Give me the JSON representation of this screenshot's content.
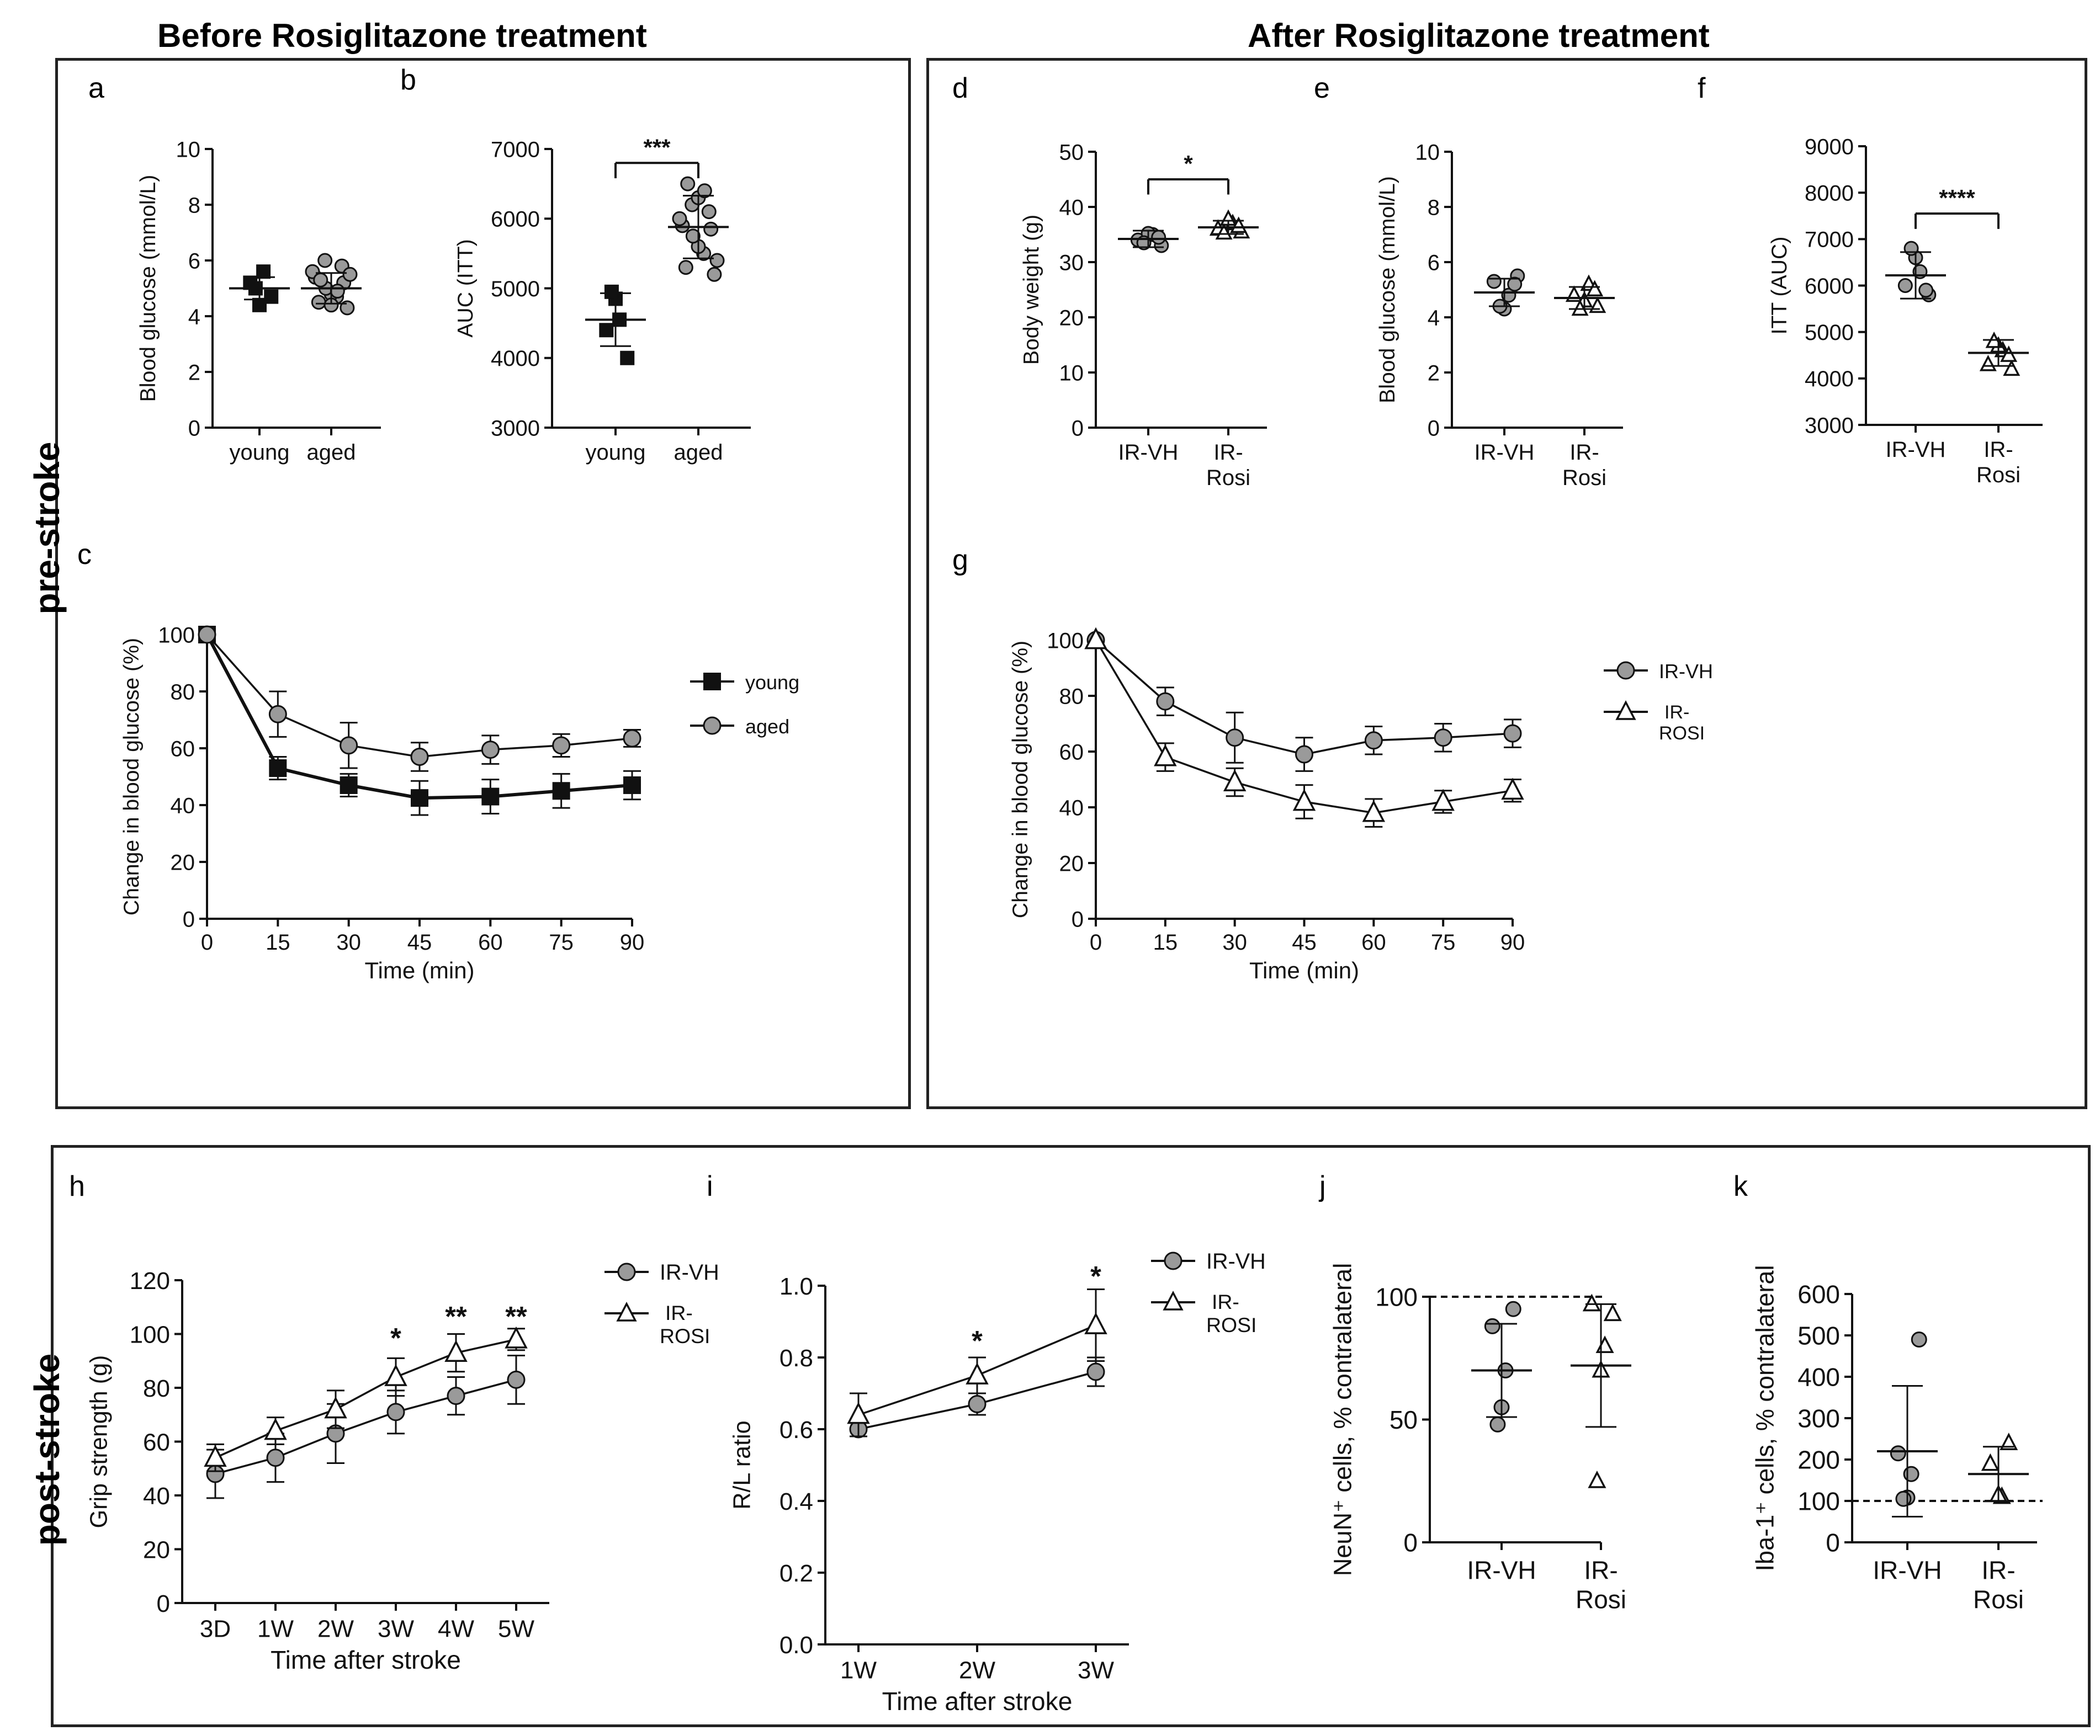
{
  "colors": {
    "aged_fill": "#9a9a9a",
    "young_fill": "#111111",
    "stroke": "#111111",
    "frame": "#222222"
  },
  "headings": {
    "before": "Before Rosiglitazone treatment",
    "after": "After Rosiglitazone treatment",
    "pre_stroke": "pre-stroke",
    "post_stroke": "post-stroke"
  },
  "chart_data": [
    {
      "id": "a",
      "letter": "a",
      "type": "scatter",
      "title": "",
      "xlabel": "",
      "ylabel": "Blood glucose (mmol/L)",
      "ylim": [
        0,
        10
      ],
      "yticks": [
        "0",
        "2",
        "4",
        "6",
        "8",
        "10"
      ],
      "categories": [
        "young",
        "aged"
      ],
      "groups": [
        {
          "name": "young",
          "marker": "square",
          "mean": 5.0,
          "sd": 0.4,
          "points": [
            4.7,
            5.2,
            5.6,
            4.4,
            5.0
          ]
        },
        {
          "name": "aged",
          "marker": "circle",
          "mean": 5.0,
          "sd": 0.55,
          "points": [
            4.3,
            4.5,
            4.7,
            4.8,
            5.0,
            5.2,
            5.4,
            5.6,
            5.8,
            6.0,
            4.4,
            4.9,
            5.3,
            5.5
          ]
        }
      ],
      "significance": []
    },
    {
      "id": "b",
      "letter": "b",
      "type": "scatter",
      "title": "",
      "xlabel": "",
      "ylabel": "AUC (ITT)",
      "ylim": [
        3000,
        7000
      ],
      "yticks": [
        "3000",
        "4000",
        "5000",
        "6000",
        "7000"
      ],
      "categories": [
        "young",
        "aged"
      ],
      "groups": [
        {
          "name": "young",
          "marker": "square",
          "mean": 4550,
          "sd": 380,
          "points": [
            4000,
            4400,
            4550,
            4850,
            4950
          ]
        },
        {
          "name": "aged",
          "marker": "circle",
          "mean": 5880,
          "sd": 450,
          "points": [
            5200,
            5300,
            5500,
            5600,
            5750,
            5850,
            5900,
            6000,
            6100,
            6200,
            6300,
            6400,
            6500,
            5400
          ]
        }
      ],
      "significance": [
        {
          "label": "***",
          "from": 0,
          "to": 1,
          "y": 6800
        }
      ]
    },
    {
      "id": "c",
      "letter": "c",
      "type": "line",
      "title": "",
      "xlabel": "Time (min)",
      "ylabel": "Change in blood glucose (%)",
      "ylim": [
        0,
        100
      ],
      "yticks": [
        "0",
        "20",
        "40",
        "60",
        "80",
        "100"
      ],
      "x": [
        0,
        15,
        30,
        45,
        60,
        75,
        90
      ],
      "xticks": [
        "0",
        "15",
        "30",
        "45",
        "60",
        "75",
        "90"
      ],
      "series": [
        {
          "name": "young",
          "marker": "square",
          "values": [
            100,
            53,
            47,
            42.5,
            43,
            45,
            47
          ],
          "err": [
            0,
            4,
            4,
            6,
            6,
            6,
            5
          ]
        },
        {
          "name": "aged",
          "marker": "circle",
          "values": [
            100,
            72,
            61,
            57,
            59.5,
            61,
            63.5
          ],
          "err": [
            0,
            8,
            8,
            5,
            5,
            4,
            3
          ]
        }
      ],
      "legend_position": "right"
    },
    {
      "id": "d",
      "letter": "d",
      "type": "scatter",
      "title": "",
      "xlabel": "",
      "ylabel": "Body weight (g)",
      "ylim": [
        0,
        50
      ],
      "yticks": [
        "0",
        "10",
        "20",
        "30",
        "40",
        "50"
      ],
      "categories": [
        "IR-VH",
        "IR-Rosi"
      ],
      "category_lines": [
        [
          "IR-VH"
        ],
        [
          "IR-",
          "Rosi"
        ]
      ],
      "groups": [
        {
          "name": "IR-VH",
          "marker": "circle",
          "mean": 34.2,
          "sd": 1.5,
          "points": [
            33,
            34,
            35,
            35.2,
            33.5,
            34.5
          ]
        },
        {
          "name": "IR-Rosi",
          "marker": "triangle",
          "mean": 36.3,
          "sd": 1.2,
          "points": [
            35.5,
            36,
            37,
            37.8,
            35.3,
            36.5
          ]
        }
      ],
      "significance": [
        {
          "label": "*",
          "from": 0,
          "to": 1,
          "y": 45
        }
      ]
    },
    {
      "id": "e",
      "letter": "e",
      "type": "scatter",
      "title": "",
      "xlabel": "",
      "ylabel": "Blood glucose (mmol/L)",
      "ylim": [
        0,
        10
      ],
      "yticks": [
        "0",
        "2",
        "4",
        "6",
        "8",
        "10"
      ],
      "categories": [
        "IR-VH",
        "IR-Rosi"
      ],
      "category_lines": [
        [
          "IR-VH"
        ],
        [
          "IR-",
          "Rosi"
        ]
      ],
      "groups": [
        {
          "name": "IR-VH",
          "marker": "circle",
          "mean": 4.9,
          "sd": 0.5,
          "points": [
            5.5,
            5.3,
            4.8,
            4.3,
            4.4,
            5.2
          ]
        },
        {
          "name": "IR-Rosi",
          "marker": "triangle",
          "mean": 4.7,
          "sd": 0.4,
          "points": [
            4.4,
            4.8,
            5.2,
            4.6,
            4.3,
            5.0
          ]
        }
      ],
      "significance": []
    },
    {
      "id": "f",
      "letter": "f",
      "type": "scatter",
      "title": "",
      "xlabel": "",
      "ylabel": "ITT (AUC)",
      "ylim": [
        3000,
        9000
      ],
      "yticks": [
        "3000",
        "4000",
        "5000",
        "6000",
        "7000",
        "8000",
        "9000"
      ],
      "categories": [
        "IR-VH",
        "IR-Rosi"
      ],
      "category_lines": [
        [
          "IR-VH"
        ],
        [
          "IR-",
          "Rosi"
        ]
      ],
      "groups": [
        {
          "name": "IR-VH",
          "marker": "circle",
          "mean": 6220,
          "sd": 500,
          "points": [
            5800,
            6000,
            6300,
            6600,
            6800,
            5900
          ]
        },
        {
          "name": "IR-Rosi",
          "marker": "triangle",
          "mean": 4550,
          "sd": 280,
          "points": [
            4200,
            4300,
            4600,
            4700,
            4800,
            4500
          ]
        }
      ],
      "significance": [
        {
          "label": "****",
          "from": 0,
          "to": 1,
          "y": 7550
        }
      ]
    },
    {
      "id": "g",
      "letter": "g",
      "type": "line",
      "title": "",
      "xlabel": "Time (min)",
      "ylabel": "Change in blood glucose (%)",
      "ylim": [
        0,
        100
      ],
      "yticks": [
        "0",
        "20",
        "40",
        "60",
        "80",
        "100"
      ],
      "x": [
        0,
        15,
        30,
        45,
        60,
        75,
        90
      ],
      "xticks": [
        "0",
        "15",
        "30",
        "45",
        "60",
        "75",
        "90"
      ],
      "series": [
        {
          "name": "IR-VH",
          "marker": "circle",
          "values": [
            100,
            78,
            65,
            59,
            64,
            65,
            66.5
          ],
          "err": [
            0,
            5,
            9,
            6,
            5,
            5,
            5
          ]
        },
        {
          "name": "IR-ROSI",
          "marker": "triangle",
          "values": [
            100,
            58,
            49,
            42,
            38,
            42,
            46
          ],
          "err": [
            0,
            5,
            5,
            6,
            5,
            4,
            4
          ]
        }
      ],
      "legend_position": "right"
    },
    {
      "id": "h",
      "letter": "h",
      "type": "line",
      "title": "",
      "xlabel": "Time after stroke",
      "ylabel": "Grip strength (g)",
      "ylim": [
        0,
        120
      ],
      "yticks": [
        "0",
        "20",
        "40",
        "60",
        "80",
        "100",
        "120"
      ],
      "x": [
        0,
        1,
        2,
        3,
        4,
        5
      ],
      "xticks": [
        "3D",
        "1W",
        "2W",
        "3W",
        "4W",
        "5W"
      ],
      "series": [
        {
          "name": "IR-VH",
          "marker": "circle",
          "values": [
            48,
            54,
            63,
            71,
            77,
            83
          ],
          "err": [
            9,
            9,
            11,
            8,
            7,
            9
          ]
        },
        {
          "name": "IR-ROSI",
          "marker": "triangle",
          "values": [
            54,
            64,
            72,
            84,
            93,
            98
          ],
          "err": [
            5,
            5,
            7,
            7,
            7,
            4
          ]
        }
      ],
      "annotations": [
        {
          "x": 3,
          "y": 95,
          "label": "*"
        },
        {
          "x": 4,
          "y": 103,
          "label": "**"
        },
        {
          "x": 5,
          "y": 103,
          "label": "**"
        }
      ],
      "legend_position": "top-right"
    },
    {
      "id": "i",
      "letter": "i",
      "type": "line",
      "title": "",
      "xlabel": "Time after stroke",
      "ylabel": "R/L ratio",
      "ylim": [
        0,
        1.0
      ],
      "yticks": [
        "0.0",
        "0.2",
        "0.4",
        "0.6",
        "0.8",
        "1.0"
      ],
      "x": [
        0,
        1,
        2
      ],
      "xticks": [
        "1W",
        "2W",
        "3W"
      ],
      "series": [
        {
          "name": "IR-VH",
          "marker": "circle",
          "values": [
            0.6,
            0.67,
            0.76
          ],
          "err": [
            0.02,
            0.03,
            0.04
          ]
        },
        {
          "name": "IR-ROSI",
          "marker": "triangle",
          "values": [
            0.64,
            0.75,
            0.89
          ],
          "err": [
            0.06,
            0.05,
            0.1
          ]
        }
      ],
      "annotations": [
        {
          "x": 1,
          "y": 0.82,
          "label": "*"
        },
        {
          "x": 2,
          "y": 1.0,
          "label": "*"
        }
      ],
      "legend_position": "top-right"
    },
    {
      "id": "j",
      "letter": "j",
      "type": "scatter",
      "title": "",
      "xlabel": "",
      "ylabel": "NeuN⁺ cells, % contralateral",
      "ylim": [
        0,
        100
      ],
      "yticks": [
        "0",
        "50",
        "100"
      ],
      "categories": [
        "IR-VH",
        "IR-Rosi"
      ],
      "category_lines": [
        [
          "IR-VH"
        ],
        [
          "IR-",
          "Rosi"
        ]
      ],
      "groups": [
        {
          "name": "IR-VH",
          "marker": "circle",
          "mean": 70,
          "sd": 19,
          "points": [
            95,
            88,
            70,
            55,
            48
          ]
        },
        {
          "name": "IR-Rosi",
          "marker": "triangle",
          "mean": 72,
          "sd": 25,
          "points": [
            93,
            97,
            80,
            70,
            25
          ]
        }
      ],
      "reference_line": 100,
      "significance": []
    },
    {
      "id": "k",
      "letter": "k",
      "type": "scatter",
      "title": "",
      "xlabel": "",
      "ylabel": "Iba-1⁺ cells, % contralateral",
      "ylim": [
        0,
        600
      ],
      "yticks": [
        "0",
        "100",
        "200",
        "300",
        "400",
        "500",
        "600"
      ],
      "categories": [
        "IR-VH",
        "IR-Rosi"
      ],
      "category_lines": [
        [
          "IR-VH"
        ],
        [
          "IR-",
          "Rosi"
        ]
      ],
      "groups": [
        {
          "name": "IR-VH",
          "marker": "circle",
          "mean": 220,
          "sd": 158,
          "points": [
            490,
            215,
            165,
            108,
            105
          ]
        },
        {
          "name": "IR-Rosi",
          "marker": "triangle",
          "mean": 165,
          "sd": 66,
          "points": [
            240,
            190,
            110,
            115
          ]
        }
      ],
      "reference_line": 100,
      "significance": []
    }
  ]
}
